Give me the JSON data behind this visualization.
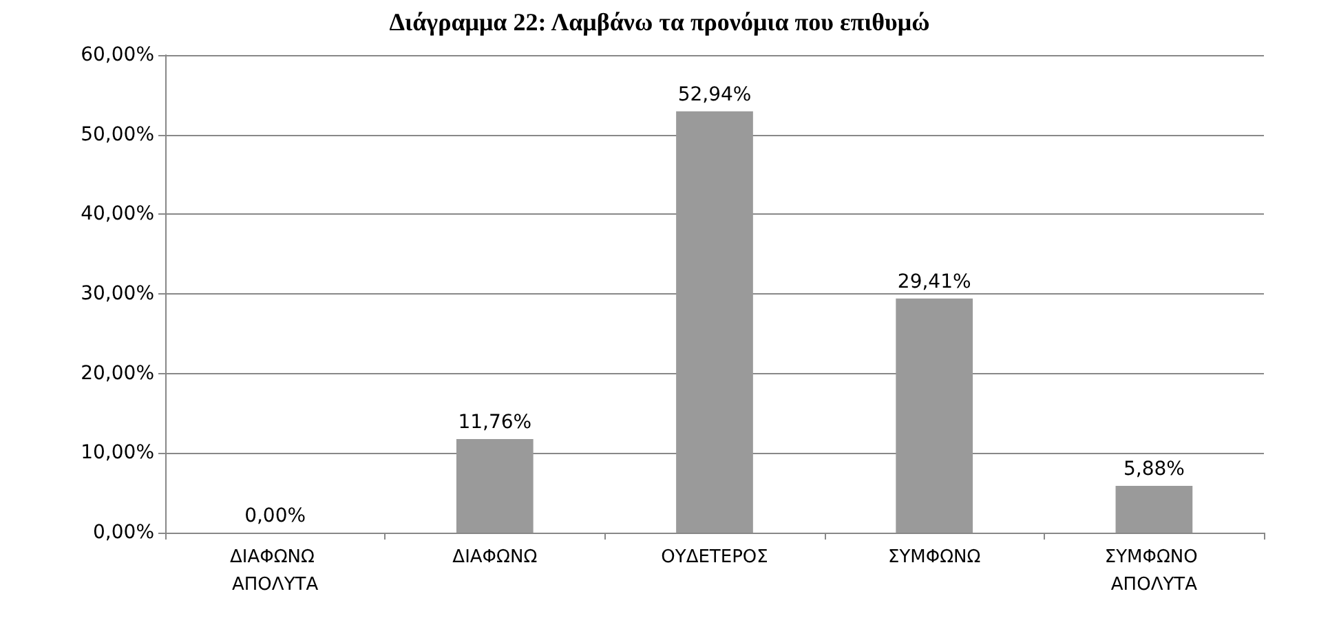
{
  "chart_data": {
    "type": "bar",
    "title": "Διάγραμμα 22: Λαμβάνω τα προνόμια που επιθυμώ",
    "categories": [
      "ΔΙΑΦΩΝΩ ΑΠΟΛΥΤΑ",
      "ΔΙΑΦΩΝΩ",
      "ΟΥΔΕΤΕΡΟΣ",
      "ΣΥΜΦΩΝΩ",
      "ΣΥΜΦΩΝΟ ΑΠΟΛΥΤΑ"
    ],
    "values": [
      0,
      11.76,
      52.94,
      29.41,
      5.88
    ],
    "value_labels": [
      "0,00%",
      "11,76%",
      "52,94%",
      "29,41%",
      "5,88%"
    ],
    "color": "#9a9a9a",
    "ylim": [
      0,
      60
    ],
    "yticks": [
      {
        "value": 0,
        "label": "0,00%"
      },
      {
        "value": 10,
        "label": "10,00%"
      },
      {
        "value": 20,
        "label": "20,00%"
      },
      {
        "value": 30,
        "label": "30,00%"
      },
      {
        "value": 40,
        "label": "40,00%"
      },
      {
        "value": 50,
        "label": "50,00%"
      },
      {
        "value": 60,
        "label": "60,00%"
      }
    ],
    "grid": "y"
  }
}
